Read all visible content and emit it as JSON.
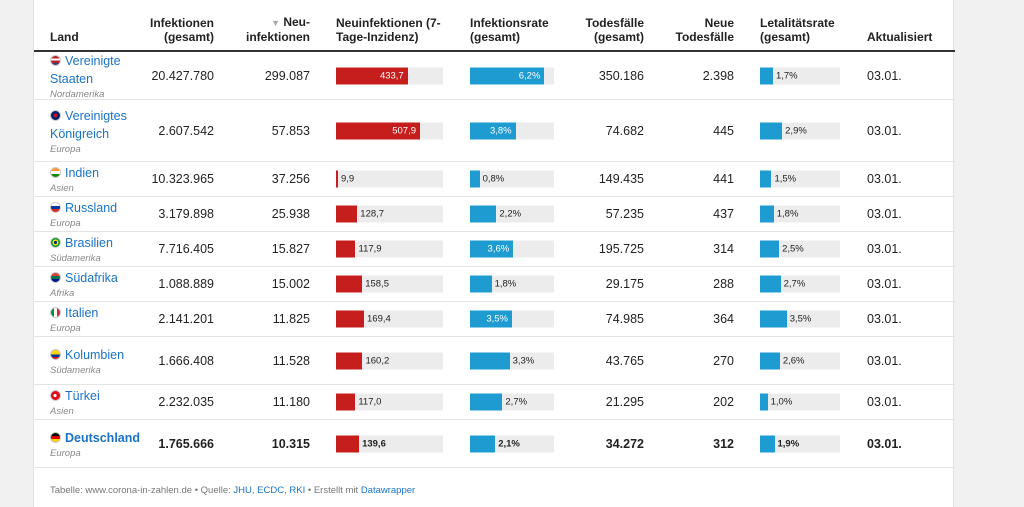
{
  "headers": {
    "land": "Land",
    "infektionen": "Infektionen (gesamt)",
    "neuinf": "Neu-infektionen",
    "sort_indicator": "▼",
    "inzidenz": "Neuinfektionen (7-Tage-Inzidenz)",
    "infrate": "Infektionsrate (gesamt)",
    "tode": "Todesfälle (gesamt)",
    "neuetode": "Neue Todesfälle",
    "letal": "Letalitätsrate (gesamt)",
    "akt": "Aktualisiert"
  },
  "rows": [
    {
      "name": "Vereinigte Staaten",
      "continent": "Nordamerika",
      "flag": "us",
      "total": "20.427.780",
      "new": "299.087",
      "incidence": "433,7",
      "incidence_value": 433.7,
      "rate": "6,2%",
      "rate_value": 6.2,
      "deaths": "350.186",
      "new_deaths": "2.398",
      "lethality": "1,7%",
      "lethality_value": 1.7,
      "updated": "03.01."
    },
    {
      "name": "Vereinigtes Königreich",
      "continent": "Europa",
      "flag": "uk",
      "total": "2.607.542",
      "new": "57.853",
      "incidence": "507,9",
      "incidence_value": 507.9,
      "rate": "3,8%",
      "rate_value": 3.8,
      "deaths": "74.682",
      "new_deaths": "445",
      "lethality": "2,9%",
      "lethality_value": 2.9,
      "updated": "03.01."
    },
    {
      "name": "Indien",
      "continent": "Asien",
      "flag": "in",
      "total": "10.323.965",
      "new": "37.256",
      "incidence": "9,9",
      "incidence_value": 9.9,
      "rate": "0,8%",
      "rate_value": 0.8,
      "deaths": "149.435",
      "new_deaths": "441",
      "lethality": "1,5%",
      "lethality_value": 1.5,
      "updated": "03.01."
    },
    {
      "name": "Russland",
      "continent": "Europa",
      "flag": "ru",
      "total": "3.179.898",
      "new": "25.938",
      "incidence": "128,7",
      "incidence_value": 128.7,
      "rate": "2,2%",
      "rate_value": 2.2,
      "deaths": "57.235",
      "new_deaths": "437",
      "lethality": "1,8%",
      "lethality_value": 1.8,
      "updated": "03.01."
    },
    {
      "name": "Brasilien",
      "continent": "Südamerika",
      "flag": "br",
      "total": "7.716.405",
      "new": "15.827",
      "incidence": "117,9",
      "incidence_value": 117.9,
      "rate": "3,6%",
      "rate_value": 3.6,
      "deaths": "195.725",
      "new_deaths": "314",
      "lethality": "2,5%",
      "lethality_value": 2.5,
      "updated": "03.01."
    },
    {
      "name": "Südafrika",
      "continent": "Afrika",
      "flag": "za",
      "total": "1.088.889",
      "new": "15.002",
      "incidence": "158,5",
      "incidence_value": 158.5,
      "rate": "1,8%",
      "rate_value": 1.8,
      "deaths": "29.175",
      "new_deaths": "288",
      "lethality": "2,7%",
      "lethality_value": 2.7,
      "updated": "03.01."
    },
    {
      "name": "Italien",
      "continent": "Europa",
      "flag": "it",
      "total": "2.141.201",
      "new": "11.825",
      "incidence": "169,4",
      "incidence_value": 169.4,
      "rate": "3,5%",
      "rate_value": 3.5,
      "deaths": "74.985",
      "new_deaths": "364",
      "lethality": "3,5%",
      "lethality_value": 3.5,
      "updated": "03.01."
    },
    {
      "name": "Kolumbien",
      "continent": "Südamerika",
      "flag": "co",
      "total": "1.666.408",
      "new": "11.528",
      "incidence": "160,2",
      "incidence_value": 160.2,
      "rate": "3,3%",
      "rate_value": 3.3,
      "deaths": "43.765",
      "new_deaths": "270",
      "lethality": "2,6%",
      "lethality_value": 2.6,
      "updated": "03.01."
    },
    {
      "name": "Türkei",
      "continent": "Asien",
      "flag": "tr",
      "total": "2.232.035",
      "new": "11.180",
      "incidence": "117,0",
      "incidence_value": 117.0,
      "rate": "2,7%",
      "rate_value": 2.7,
      "deaths": "21.295",
      "new_deaths": "202",
      "lethality": "1,0%",
      "lethality_value": 1.0,
      "updated": "03.01."
    },
    {
      "name": "Deutschland",
      "continent": "Europa",
      "flag": "de",
      "total": "1.765.666",
      "new": "10.315",
      "incidence": "139,6",
      "incidence_value": 139.6,
      "rate": "2,1%",
      "rate_value": 2.1,
      "deaths": "34.272",
      "new_deaths": "312",
      "lethality": "1,9%",
      "lethality_value": 1.9,
      "updated": "03.01.",
      "bold": true
    }
  ],
  "scales": {
    "incidence_max": 507.9,
    "rate_max": 7.0,
    "lethality_max": 11.0
  },
  "colors": {
    "incidence": "#c61d1d",
    "rate": "#1e9bd1",
    "lethality": "#1e9bd1",
    "link": "#1a73c8"
  },
  "footer": {
    "prefix": "Tabelle: www.corona-in-zahlen.de • Quelle: ",
    "src1": "JHU",
    "src2": "ECDC",
    "src3": "RKI",
    "mid": " • Erstellt mit ",
    "tool": "Datawrapper"
  }
}
